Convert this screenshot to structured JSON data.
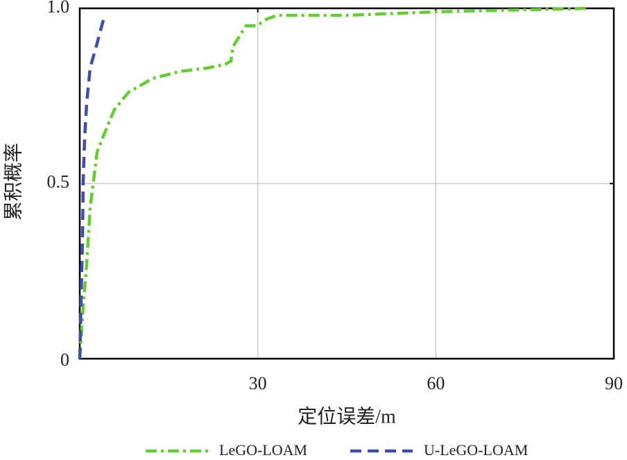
{
  "chart_data": {
    "type": "line",
    "x_label": "定位误差/m",
    "y_label": "累积概率",
    "xlim": [
      0,
      90
    ],
    "ylim": [
      0,
      1
    ],
    "xticks": [
      30,
      60,
      90
    ],
    "yticks": [
      0,
      0.5,
      {
        "value": 1,
        "label": "1.0"
      }
    ],
    "grid": true,
    "legend": "bottom",
    "series": [
      {
        "name": "LeGO-LOAM",
        "color": "#66cc33",
        "dash": "dashdot",
        "x": [
          0,
          0.58,
          1.17,
          1.75,
          2.34,
          2.92,
          4.1,
          5.8,
          8.2,
          12.3,
          16.9,
          21.6,
          24.5,
          25.5,
          25.8,
          26.9,
          28,
          29.8,
          31.6,
          33.3,
          45,
          60,
          86
        ],
        "values": [
          0,
          0.15,
          0.27,
          0.43,
          0.51,
          0.59,
          0.64,
          0.71,
          0.76,
          0.8,
          0.82,
          0.83,
          0.84,
          0.85,
          0.89,
          0.92,
          0.95,
          0.95,
          0.97,
          0.98,
          0.98,
          0.99,
          1.0
        ]
      },
      {
        "name": "U-LeGO-LOAM",
        "color": "#3f4fa8",
        "dash": "dashed",
        "x": [
          0,
          0.23,
          0.47,
          0.58,
          0.82,
          1.17,
          1.75,
          2.92,
          3.7,
          4.2
        ],
        "values": [
          0,
          0.17,
          0.35,
          0.51,
          0.63,
          0.73,
          0.83,
          0.9,
          0.95,
          0.98
        ]
      }
    ]
  }
}
